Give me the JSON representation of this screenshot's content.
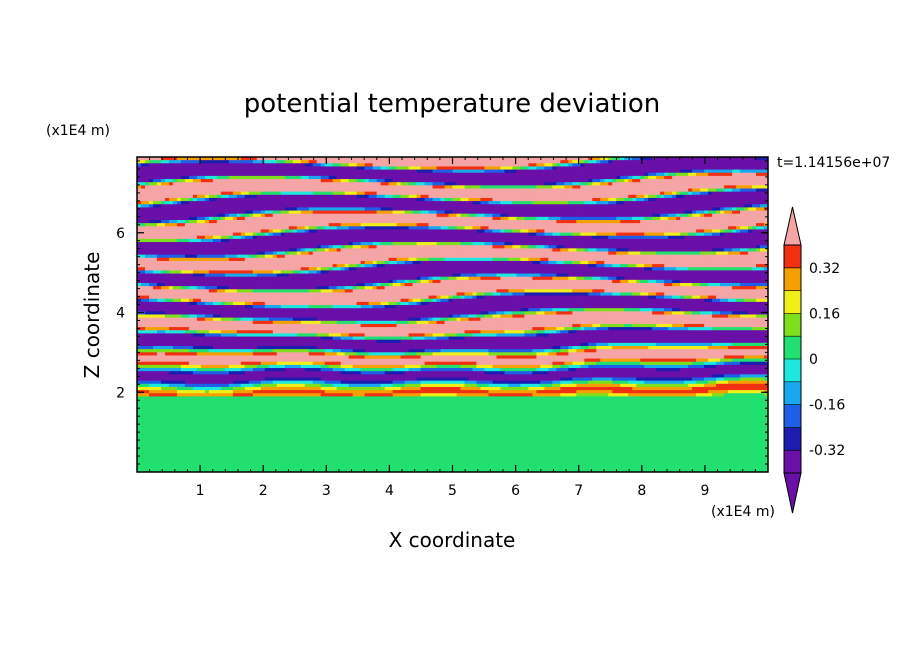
{
  "chart_data": {
    "type": "heatmap",
    "title": "potential temperature deviation",
    "time_label": "t=1.14156e+07",
    "xlabel": "X coordinate",
    "ylabel": "Z coordinate",
    "x_unit": "(x1E4 m)",
    "y_unit": "(x1E4 m)",
    "xlim": [
      0,
      10
    ],
    "ylim": [
      0,
      7.9
    ],
    "x_ticks": [
      "1",
      "2",
      "3",
      "4",
      "5",
      "6",
      "7",
      "8",
      "9"
    ],
    "y_ticks": [
      "2",
      "4",
      "6"
    ],
    "grid": false,
    "legend": "right",
    "colorbar": {
      "tick_labels": [
        "0.32",
        "0.16",
        "0",
        "-0.16",
        "-0.32"
      ],
      "tick_values": [
        0.32,
        0.16,
        0,
        -0.16,
        -0.32
      ],
      "levels": [
        -0.4,
        -0.32,
        -0.24,
        -0.16,
        -0.08,
        0,
        0.08,
        0.16,
        0.24,
        0.32,
        0.4
      ],
      "colors": [
        "#6a0fa8",
        "#1c1cb0",
        "#1e5fe8",
        "#18a8f0",
        "#1ce8e0",
        "#22e070",
        "#7ee01c",
        "#f0f018",
        "#f5a000",
        "#f03010",
        "#f5a5a5"
      ],
      "under_color": "#6a0fa8",
      "over_color": "#f5a5a5"
    },
    "description_regions": {
      "lower_layer_z": [
        0,
        1.9
      ],
      "lower_layer_values": [
        0.05,
        0.07
      ],
      "upper_layer_values": [
        -0.4,
        0.4
      ]
    }
  },
  "colors": {
    "axis": "#000000",
    "background": "#ffffff"
  }
}
